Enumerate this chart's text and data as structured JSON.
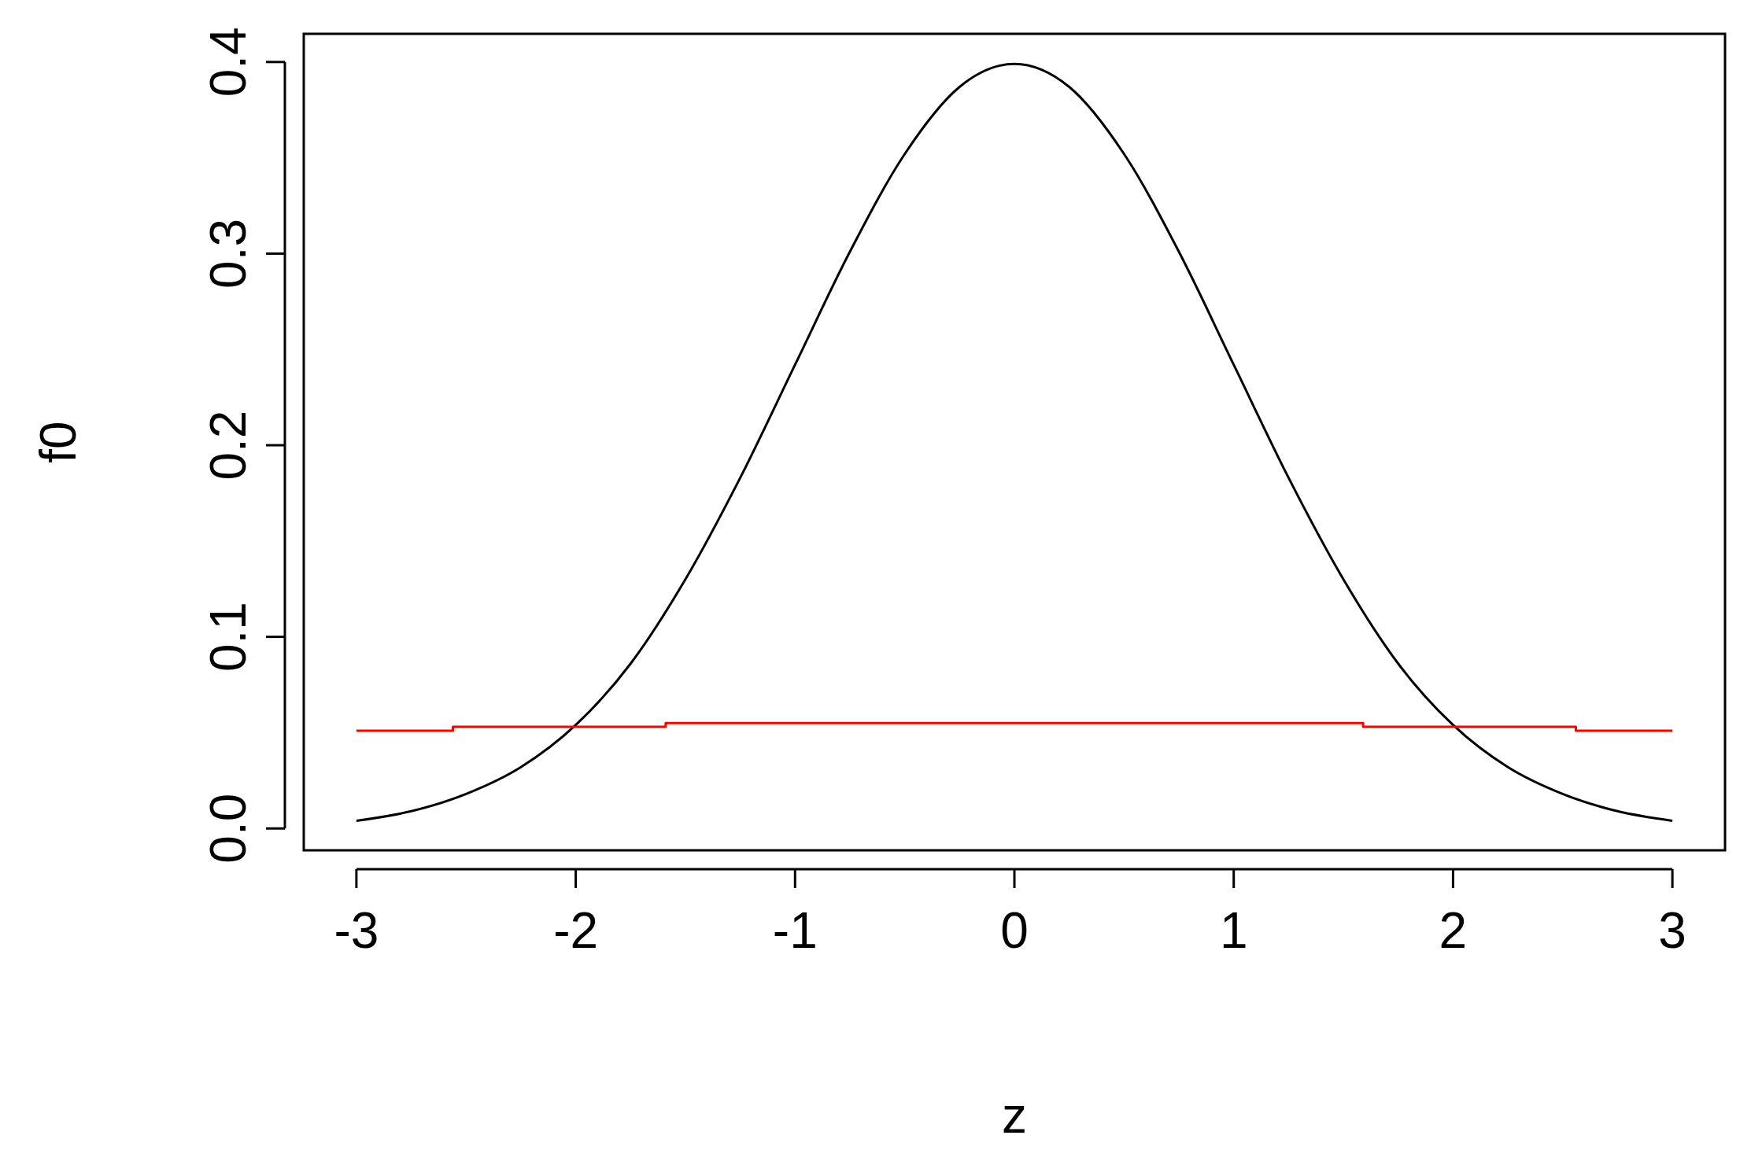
{
  "chart_data": {
    "type": "line",
    "xlabel": "z",
    "ylabel": "f0",
    "xlim": [
      -3.24,
      3.24
    ],
    "ylim": [
      -0.0114,
      0.4147
    ],
    "xticks": [
      -3,
      -2,
      -1,
      0,
      1,
      2,
      3
    ],
    "yticks": [
      {
        "value": 0,
        "label": "0.0"
      },
      0.1,
      0.2,
      0.3,
      0.4
    ],
    "grid": false,
    "series": [
      {
        "color": "#000000",
        "x": [
          -3,
          -2.75,
          -2.5,
          -2.25,
          -2,
          -1.75,
          -1.5,
          -1.25,
          -1,
          -0.75,
          -0.5,
          -0.25,
          0,
          0.25,
          0.5,
          0.75,
          1,
          1.25,
          1.5,
          1.75,
          2,
          2.25,
          2.5,
          2.75,
          3
        ],
        "values": [
          0.004,
          0.009,
          0.018,
          0.032,
          0.054,
          0.086,
          0.13,
          0.183,
          0.242,
          0.301,
          0.352,
          0.387,
          0.399,
          0.387,
          0.352,
          0.301,
          0.242,
          0.183,
          0.13,
          0.086,
          0.054,
          0.032,
          0.018,
          0.009,
          0.004
        ]
      },
      {
        "type": "step",
        "color": "#ff0000",
        "x": [
          -3,
          -2.56,
          -1.59,
          1.59,
          2.56,
          3
        ],
        "values": [
          0.051,
          0.053,
          0.055,
          0.053,
          0.051,
          0.051
        ]
      }
    ]
  }
}
